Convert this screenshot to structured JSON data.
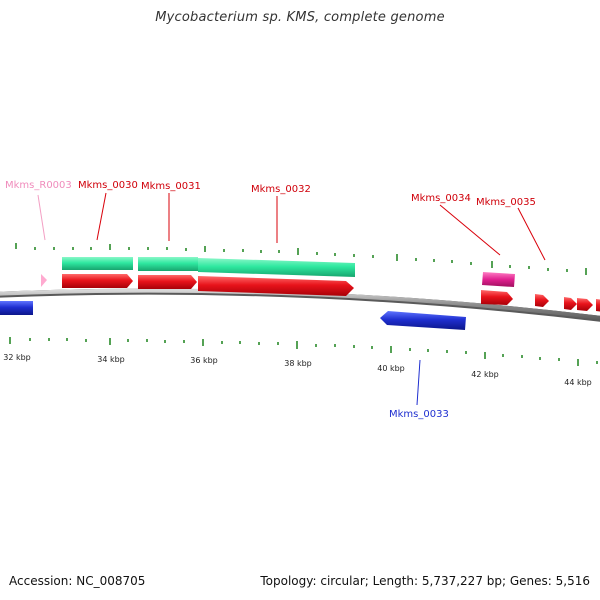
{
  "title": "Mycobacterium sp. KMS, complete genome",
  "footer": {
    "accession": "Accession: NC_008705",
    "summary": "Topology: circular; Length: 5,737,227 bp; Genes: 5,516"
  },
  "colors": {
    "forward_gene": "#e8131b",
    "reverse_gene": "#1f2fd0",
    "cds": "#2ee8a0",
    "rna_gene": "#ffaad0",
    "pseudo": "#e0208f",
    "ticks": "#2a8a2a",
    "backbone": "#9a9a9a"
  },
  "kbp_labels": [
    "32 kbp",
    "34 kbp",
    "36 kbp",
    "38 kbp",
    "40 kbp",
    "42 kbp",
    "44 kbp"
  ],
  "gene_labels": {
    "r0003": "Mkms_R0003",
    "g0030": "Mkms_0030",
    "g0031": "Mkms_0031",
    "g0032": "Mkms_0032",
    "g0033": "Mkms_0033",
    "g0034": "Mkms_0034",
    "g0035": "Mkms_0035"
  }
}
